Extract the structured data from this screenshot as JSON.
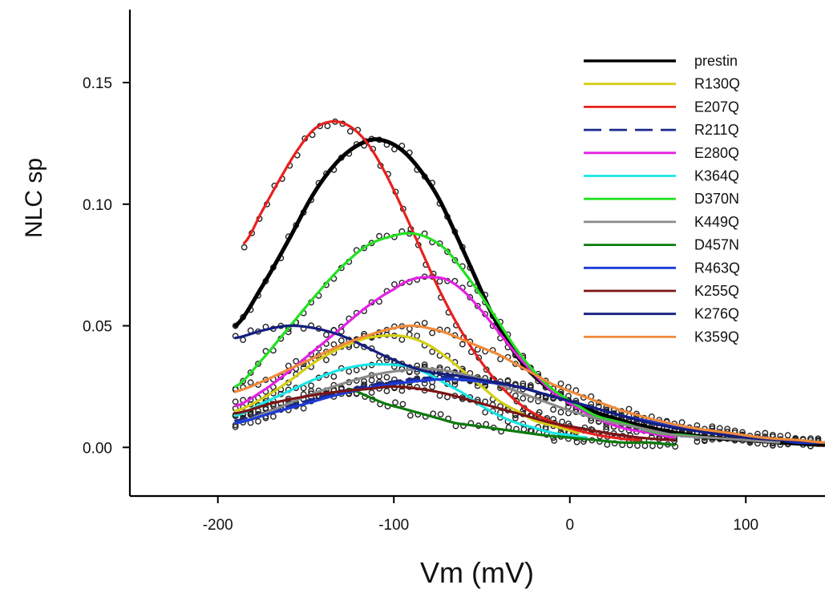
{
  "chart_data": {
    "type": "line",
    "xlabel": "Vm (mV)",
    "ylabel": "NLC sp",
    "xlim": [
      -250,
      145
    ],
    "ylim": [
      -0.02,
      0.18
    ],
    "x_ticks": [
      {
        "value": -200,
        "label": "-200"
      },
      {
        "value": -100,
        "label": "-100"
      },
      {
        "value": 0,
        "label": "0"
      },
      {
        "value": 100,
        "label": "100"
      }
    ],
    "y_ticks": [
      {
        "value": 0.0,
        "label": "0.00"
      },
      {
        "value": 0.05,
        "label": "0.05"
      },
      {
        "value": 0.1,
        "label": "0.10"
      },
      {
        "value": 0.15,
        "label": "0.15"
      }
    ],
    "legend_position": "top-right",
    "series": [
      {
        "name": "prestin",
        "color": "#000000",
        "dash": false,
        "x_range": [
          -190,
          145
        ],
        "points": [
          [
            -190,
            0.05
          ],
          [
            -175,
            0.066
          ],
          [
            -160,
            0.085
          ],
          [
            -145,
            0.105
          ],
          [
            -130,
            0.119
          ],
          [
            -115,
            0.126
          ],
          [
            -105,
            0.126
          ],
          [
            -95,
            0.122
          ],
          [
            -85,
            0.114
          ],
          [
            -75,
            0.103
          ],
          [
            -65,
            0.088
          ],
          [
            -55,
            0.072
          ],
          [
            -45,
            0.056
          ],
          [
            -35,
            0.043
          ],
          [
            -25,
            0.033
          ],
          [
            -15,
            0.026
          ],
          [
            -5,
            0.021
          ],
          [
            5,
            0.017
          ],
          [
            20,
            0.013
          ],
          [
            40,
            0.009
          ],
          [
            60,
            0.006
          ],
          [
            80,
            0.004
          ],
          [
            100,
            0.003
          ],
          [
            120,
            0.002
          ],
          [
            145,
            0.001
          ]
        ]
      },
      {
        "name": "R130Q",
        "color": "#d4cf14",
        "dash": false,
        "x_range": [
          -190,
          5
        ],
        "points": [
          [
            -190,
            0.015
          ],
          [
            -175,
            0.02
          ],
          [
            -160,
            0.027
          ],
          [
            -145,
            0.035
          ],
          [
            -130,
            0.041
          ],
          [
            -115,
            0.045
          ],
          [
            -100,
            0.046
          ],
          [
            -90,
            0.045
          ],
          [
            -80,
            0.042
          ],
          [
            -70,
            0.037
          ],
          [
            -60,
            0.031
          ],
          [
            -50,
            0.025
          ],
          [
            -40,
            0.019
          ],
          [
            -30,
            0.015
          ],
          [
            -20,
            0.011
          ],
          [
            -10,
            0.009
          ],
          [
            0,
            0.007
          ],
          [
            5,
            0.006
          ]
        ]
      },
      {
        "name": "E207Q",
        "color": "#e8201c",
        "dash": false,
        "x_range": [
          -185,
          40
        ],
        "points": [
          [
            -185,
            0.084
          ],
          [
            -175,
            0.097
          ],
          [
            -165,
            0.11
          ],
          [
            -155,
            0.122
          ],
          [
            -145,
            0.131
          ],
          [
            -135,
            0.134
          ],
          [
            -125,
            0.132
          ],
          [
            -115,
            0.125
          ],
          [
            -105,
            0.113
          ],
          [
            -95,
            0.098
          ],
          [
            -85,
            0.082
          ],
          [
            -75,
            0.066
          ],
          [
            -65,
            0.052
          ],
          [
            -55,
            0.04
          ],
          [
            -45,
            0.03
          ],
          [
            -35,
            0.022
          ],
          [
            -25,
            0.016
          ],
          [
            -15,
            0.012
          ],
          [
            -5,
            0.009
          ],
          [
            10,
            0.006
          ],
          [
            25,
            0.004
          ],
          [
            40,
            0.003
          ]
        ]
      },
      {
        "name": "R211Q",
        "color": "#1a2a8c",
        "dash": true,
        "x_range": [
          -190,
          145
        ],
        "points": [
          [
            -190,
            0.011
          ],
          [
            -170,
            0.015
          ],
          [
            -150,
            0.019
          ],
          [
            -130,
            0.023
          ],
          [
            -110,
            0.026
          ],
          [
            -90,
            0.028
          ],
          [
            -70,
            0.029
          ],
          [
            -50,
            0.028
          ],
          [
            -30,
            0.025
          ],
          [
            -10,
            0.021
          ],
          [
            10,
            0.017
          ],
          [
            30,
            0.013
          ],
          [
            50,
            0.01
          ],
          [
            70,
            0.007
          ],
          [
            90,
            0.005
          ],
          [
            110,
            0.004
          ],
          [
            130,
            0.002
          ],
          [
            145,
            0.002
          ]
        ]
      },
      {
        "name": "E280Q",
        "color": "#e421e4",
        "dash": false,
        "x_range": [
          -190,
          60
        ],
        "points": [
          [
            -190,
            0.017
          ],
          [
            -175,
            0.023
          ],
          [
            -160,
            0.031
          ],
          [
            -145,
            0.04
          ],
          [
            -130,
            0.049
          ],
          [
            -115,
            0.058
          ],
          [
            -100,
            0.065
          ],
          [
            -90,
            0.069
          ],
          [
            -80,
            0.07
          ],
          [
            -70,
            0.069
          ],
          [
            -60,
            0.064
          ],
          [
            -50,
            0.056
          ],
          [
            -40,
            0.047
          ],
          [
            -30,
            0.038
          ],
          [
            -20,
            0.03
          ],
          [
            -10,
            0.023
          ],
          [
            0,
            0.018
          ],
          [
            15,
            0.012
          ],
          [
            30,
            0.008
          ],
          [
            45,
            0.006
          ],
          [
            60,
            0.004
          ]
        ]
      },
      {
        "name": "K364Q",
        "color": "#18e6e6",
        "dash": false,
        "x_range": [
          -190,
          10
        ],
        "points": [
          [
            -190,
            0.013
          ],
          [
            -175,
            0.018
          ],
          [
            -160,
            0.023
          ],
          [
            -145,
            0.028
          ],
          [
            -130,
            0.032
          ],
          [
            -115,
            0.034
          ],
          [
            -100,
            0.034
          ],
          [
            -90,
            0.033
          ],
          [
            -80,
            0.03
          ],
          [
            -70,
            0.026
          ],
          [
            -60,
            0.022
          ],
          [
            -50,
            0.017
          ],
          [
            -40,
            0.013
          ],
          [
            -30,
            0.01
          ],
          [
            -20,
            0.008
          ],
          [
            -10,
            0.006
          ],
          [
            0,
            0.005
          ],
          [
            10,
            0.004
          ]
        ]
      },
      {
        "name": "D370N",
        "color": "#22e022",
        "dash": false,
        "x_range": [
          -190,
          80
        ],
        "points": [
          [
            -190,
            0.025
          ],
          [
            -175,
            0.036
          ],
          [
            -160,
            0.049
          ],
          [
            -145,
            0.062
          ],
          [
            -130,
            0.074
          ],
          [
            -115,
            0.083
          ],
          [
            -100,
            0.087
          ],
          [
            -90,
            0.088
          ],
          [
            -80,
            0.086
          ],
          [
            -70,
            0.081
          ],
          [
            -60,
            0.072
          ],
          [
            -50,
            0.062
          ],
          [
            -40,
            0.051
          ],
          [
            -30,
            0.04
          ],
          [
            -20,
            0.031
          ],
          [
            -10,
            0.024
          ],
          [
            0,
            0.019
          ],
          [
            15,
            0.013
          ],
          [
            30,
            0.01
          ],
          [
            50,
            0.006
          ],
          [
            65,
            0.005
          ],
          [
            80,
            0.004
          ]
        ]
      },
      {
        "name": "K449Q",
        "color": "#8a8a8a",
        "dash": false,
        "x_range": [
          -190,
          120
        ],
        "points": [
          [
            -190,
            0.01
          ],
          [
            -170,
            0.015
          ],
          [
            -150,
            0.021
          ],
          [
            -130,
            0.026
          ],
          [
            -110,
            0.03
          ],
          [
            -90,
            0.032
          ],
          [
            -75,
            0.032
          ],
          [
            -60,
            0.03
          ],
          [
            -45,
            0.027
          ],
          [
            -30,
            0.023
          ],
          [
            -15,
            0.019
          ],
          [
            0,
            0.015
          ],
          [
            20,
            0.011
          ],
          [
            40,
            0.008
          ],
          [
            60,
            0.005
          ],
          [
            80,
            0.004
          ],
          [
            100,
            0.003
          ],
          [
            120,
            0.002
          ]
        ]
      },
      {
        "name": "D457N",
        "color": "#0c7a0c",
        "dash": false,
        "x_range": [
          -125,
          60
        ],
        "points": [
          [
            -125,
            0.024
          ],
          [
            -115,
            0.021
          ],
          [
            -105,
            0.018
          ],
          [
            -95,
            0.016
          ],
          [
            -85,
            0.014
          ],
          [
            -75,
            0.012
          ],
          [
            -65,
            0.01
          ],
          [
            -55,
            0.009
          ],
          [
            -45,
            0.008
          ],
          [
            -35,
            0.007
          ],
          [
            -25,
            0.006
          ],
          [
            -15,
            0.005
          ],
          [
            0,
            0.004
          ],
          [
            15,
            0.003
          ],
          [
            30,
            0.002
          ],
          [
            45,
            0.002
          ],
          [
            60,
            0.001
          ]
        ]
      },
      {
        "name": "R463Q",
        "color": "#1c3ad8",
        "dash": false,
        "x_range": [
          -190,
          145
        ],
        "points": [
          [
            -190,
            0.01
          ],
          [
            -170,
            0.014
          ],
          [
            -150,
            0.018
          ],
          [
            -130,
            0.022
          ],
          [
            -110,
            0.025
          ],
          [
            -90,
            0.027
          ],
          [
            -70,
            0.028
          ],
          [
            -50,
            0.027
          ],
          [
            -30,
            0.025
          ],
          [
            -10,
            0.021
          ],
          [
            10,
            0.017
          ],
          [
            30,
            0.013
          ],
          [
            50,
            0.01
          ],
          [
            70,
            0.007
          ],
          [
            90,
            0.005
          ],
          [
            110,
            0.004
          ],
          [
            130,
            0.002
          ],
          [
            145,
            0.002
          ]
        ]
      },
      {
        "name": "K255Q",
        "color": "#7a1414",
        "dash": false,
        "x_range": [
          -190,
          60
        ],
        "points": [
          [
            -190,
            0.014
          ],
          [
            -170,
            0.018
          ],
          [
            -150,
            0.021
          ],
          [
            -130,
            0.023
          ],
          [
            -115,
            0.024
          ],
          [
            -100,
            0.025
          ],
          [
            -85,
            0.024
          ],
          [
            -70,
            0.022
          ],
          [
            -55,
            0.019
          ],
          [
            -40,
            0.016
          ],
          [
            -25,
            0.013
          ],
          [
            -10,
            0.01
          ],
          [
            5,
            0.008
          ],
          [
            20,
            0.006
          ],
          [
            40,
            0.004
          ],
          [
            60,
            0.003
          ]
        ]
      },
      {
        "name": "K276Q",
        "color": "#141e80",
        "dash": false,
        "x_range": [
          -190,
          145
        ],
        "points": [
          [
            -190,
            0.045
          ],
          [
            -175,
            0.048
          ],
          [
            -160,
            0.05
          ],
          [
            -145,
            0.049
          ],
          [
            -130,
            0.046
          ],
          [
            -115,
            0.041
          ],
          [
            -100,
            0.036
          ],
          [
            -90,
            0.033
          ],
          [
            -80,
            0.031
          ],
          [
            -70,
            0.03
          ],
          [
            -60,
            0.029
          ],
          [
            -45,
            0.027
          ],
          [
            -30,
            0.025
          ],
          [
            -15,
            0.022
          ],
          [
            0,
            0.019
          ],
          [
            20,
            0.015
          ],
          [
            40,
            0.011
          ],
          [
            60,
            0.008
          ],
          [
            80,
            0.006
          ],
          [
            100,
            0.004
          ],
          [
            120,
            0.003
          ],
          [
            145,
            0.002
          ]
        ]
      },
      {
        "name": "K359Q",
        "color": "#f08a3a",
        "dash": false,
        "x_range": [
          -190,
          145
        ],
        "points": [
          [
            -190,
            0.023
          ],
          [
            -175,
            0.027
          ],
          [
            -160,
            0.032
          ],
          [
            -145,
            0.037
          ],
          [
            -130,
            0.042
          ],
          [
            -115,
            0.046
          ],
          [
            -100,
            0.049
          ],
          [
            -90,
            0.05
          ],
          [
            -80,
            0.049
          ],
          [
            -70,
            0.047
          ],
          [
            -60,
            0.044
          ],
          [
            -50,
            0.041
          ],
          [
            -40,
            0.038
          ],
          [
            -30,
            0.034
          ],
          [
            -20,
            0.03
          ],
          [
            -10,
            0.026
          ],
          [
            0,
            0.023
          ],
          [
            15,
            0.019
          ],
          [
            30,
            0.015
          ],
          [
            50,
            0.011
          ],
          [
            70,
            0.008
          ],
          [
            90,
            0.006
          ],
          [
            110,
            0.004
          ],
          [
            130,
            0.003
          ],
          [
            145,
            0.002
          ]
        ]
      }
    ]
  }
}
